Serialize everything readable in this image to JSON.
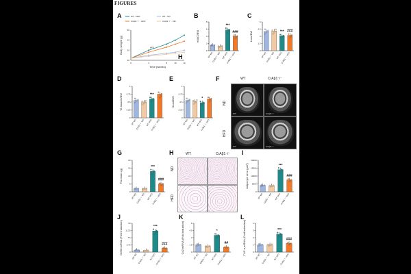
{
  "figure_title": "FIGURES",
  "colors": {
    "wt_nd": "#9fb7e0",
    "cr_nd": "#f2c9a0",
    "wt_hfd": "#1f8a8a",
    "cr_hfd": "#f07a2a",
    "sig": "#e0392a"
  },
  "group_labels": [
    "WT ND",
    "CrAβ1⁻/⁻ ND",
    "WT HFD",
    "CrAβ1⁻/⁻ HFD"
  ],
  "panels": {
    "A": {
      "label": "A",
      "legend": [
        "WT - HFD",
        "WT - ND",
        "CrAβ1⁻/⁻ - HFD",
        "CrAβ1⁻/⁻ - ND"
      ],
      "ylabel": "Body weight (g)",
      "xlabel": "Time (weeks)",
      "annot": "HFD",
      "yticks": [
        "20",
        "30",
        "40",
        "50"
      ],
      "xticks": [
        "0",
        "4",
        "8",
        "10",
        "12"
      ]
    },
    "B": {
      "label": "B",
      "ylabel": "eWAT/BW",
      "stars": "***",
      "hash": "###"
    },
    "C": {
      "label": "C",
      "ylabel": "Liver/BW",
      "stars": "***",
      "hash": "###"
    },
    "D": {
      "label": "D",
      "ylabel": "TA muscle/BW",
      "stars": "***"
    },
    "E": {
      "label": "E",
      "ylabel": "Heart/BW",
      "stars": "*"
    },
    "F": {
      "label": "F",
      "col_wt": "WT",
      "col_cr": "CrAβ1⁻/⁻",
      "row_nd": "ND",
      "row_hfd": "HFD",
      "cap_wt": "WT",
      "cap_cr": "CrAβ1⁻/⁻"
    },
    "G": {
      "label": "G",
      "ylabel": "Fat mass (g)",
      "stars": "***",
      "hash": "###"
    },
    "H": {
      "label": "H",
      "col_wt": "WT",
      "col_cr": "CrAβ1⁻/⁻",
      "row_nd": "ND",
      "row_hfd": "HFD"
    },
    "H2": {
      "label": "H"
    },
    "I": {
      "label": "I",
      "ylabel": "Adipocyte area (µm²)",
      "stars": "***",
      "hash": "###"
    },
    "J": {
      "label": "J",
      "ylabel": "CD68 mRNA (Fold induction)",
      "stars": "***",
      "hash": "###"
    },
    "K": {
      "label": "K",
      "ylabel": "Cd2 mRNA (Fold induction)",
      "stars": "*",
      "hash": "##"
    },
    "L": {
      "label": "L",
      "ylabel": "TNF-α mRNA (Fold induction)",
      "stars": "***",
      "hash": "###"
    }
  },
  "chart_data": [
    {
      "panel": "A",
      "type": "line",
      "x": [
        0,
        4,
        8,
        10,
        12
      ],
      "series": [
        {
          "name": "WT - HFD",
          "values": [
            22,
            30,
            36,
            40,
            45
          ]
        },
        {
          "name": "WT - ND",
          "values": [
            22,
            25,
            27,
            28,
            30
          ]
        },
        {
          "name": "CrAβ1⁻/⁻ - HFD",
          "values": [
            22,
            28,
            33,
            36,
            39
          ]
        },
        {
          "name": "CrAβ1⁻/⁻ - ND",
          "values": [
            22,
            24,
            26,
            27,
            28
          ]
        }
      ]
    },
    {
      "panel": "B",
      "type": "bar",
      "values": [
        1.5,
        1.2,
        5.8,
        4.0
      ],
      "ylim": [
        0,
        8
      ]
    },
    {
      "panel": "C",
      "type": "bar",
      "values": [
        4.0,
        4.1,
        3.1,
        3.2
      ],
      "ylim": [
        0,
        6
      ]
    },
    {
      "panel": "D",
      "type": "bar",
      "values": [
        0.55,
        0.5,
        0.6,
        0.75
      ],
      "ylim": [
        0,
        1.0
      ]
    },
    {
      "panel": "E",
      "type": "bar",
      "values": [
        0.55,
        0.52,
        0.48,
        0.6
      ],
      "ylim": [
        0,
        1.0
      ]
    },
    {
      "panel": "G",
      "type": "bar",
      "values": [
        2,
        2,
        13,
        5
      ],
      "ylim": [
        0,
        20
      ]
    },
    {
      "panel": "I",
      "type": "bar",
      "values": [
        4000,
        3800,
        14000,
        7500
      ],
      "ylim": [
        0,
        20000
      ]
    },
    {
      "panel": "J",
      "type": "bar",
      "values": [
        1,
        0.8,
        11,
        2
      ],
      "ylim": [
        0,
        15
      ]
    },
    {
      "panel": "K",
      "type": "bar",
      "values": [
        1.5,
        1.2,
        3.5,
        1.0
      ],
      "ylim": [
        0,
        6
      ]
    },
    {
      "panel": "L",
      "type": "bar",
      "values": [
        1,
        1,
        2.5,
        1.2
      ],
      "ylim": [
        0,
        4
      ]
    }
  ]
}
